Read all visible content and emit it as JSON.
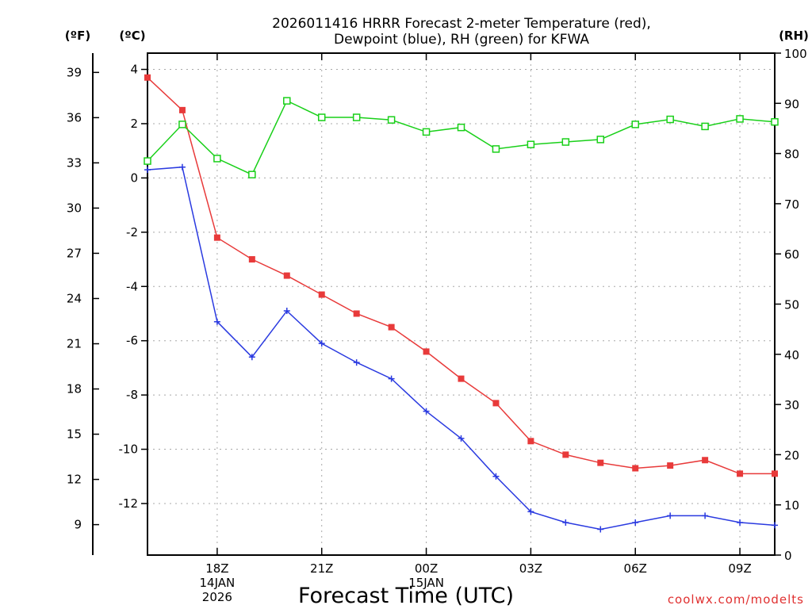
{
  "chart_data": {
    "type": "line",
    "title_lines": [
      "2026011416 HRRR Forecast 2-meter Temperature (red),",
      "Dewpoint (blue), RH (green) for KFWA"
    ],
    "xlabel": "Forecast Time (UTC)",
    "credit": "coolwx.com/modelts",
    "hours": [
      16,
      17,
      18,
      19,
      20,
      21,
      22,
      23,
      24,
      25,
      26,
      27,
      28,
      29,
      30,
      31,
      32,
      33,
      34
    ],
    "xlim": [
      16,
      34
    ],
    "x_ticks": [
      {
        "h": 18,
        "lines": [
          "18Z",
          "14JAN",
          "2026"
        ]
      },
      {
        "h": 21,
        "lines": [
          "21Z"
        ]
      },
      {
        "h": 24,
        "lines": [
          "00Z",
          "15JAN"
        ]
      },
      {
        "h": 27,
        "lines": [
          "03Z"
        ]
      },
      {
        "h": 30,
        "lines": [
          "06Z"
        ]
      },
      {
        "h": 33,
        "lines": [
          "09Z"
        ]
      }
    ],
    "axis_c": {
      "unit": "(ºC)",
      "lim": [
        -13.9,
        4.6
      ],
      "ticks": [
        4,
        2,
        0,
        -2,
        -4,
        -6,
        -8,
        -10,
        -12
      ]
    },
    "axis_f": {
      "unit": "(ºF)",
      "ticks": [
        39,
        36,
        33,
        30,
        27,
        24,
        21,
        18,
        15,
        12,
        9
      ]
    },
    "axis_rh": {
      "unit": "(RH)",
      "lim": [
        0,
        100
      ],
      "ticks": [
        100,
        90,
        80,
        70,
        60,
        50,
        40,
        30,
        20,
        10,
        0
      ]
    },
    "series": [
      {
        "name": "Temperature",
        "unit": "C",
        "color": "#e83a3a",
        "marker": "filled-square",
        "values": [
          3.7,
          2.5,
          -2.2,
          -3.0,
          -3.6,
          -4.3,
          -5.0,
          -5.5,
          -6.4,
          -7.4,
          -8.3,
          -9.7,
          -10.2,
          -10.5,
          -10.7,
          -10.6,
          -10.4,
          -10.9,
          -10.9
        ]
      },
      {
        "name": "Dewpoint",
        "unit": "C",
        "color": "#2a3ae0",
        "marker": "plus",
        "values": [
          0.3,
          0.4,
          -5.3,
          -6.6,
          -4.9,
          -6.1,
          -6.8,
          -7.4,
          -8.6,
          -9.6,
          -11.0,
          -12.3,
          -12.7,
          -12.95,
          -12.7,
          -12.45,
          -12.45,
          -12.7,
          -12.8
        ]
      },
      {
        "name": "RH",
        "unit": "%",
        "color": "#19d019",
        "marker": "open-square",
        "values": [
          78.5,
          85.8,
          79.0,
          75.8,
          90.5,
          87.2,
          87.2,
          86.7,
          84.3,
          85.2,
          80.9,
          81.8,
          82.3,
          82.8,
          85.8,
          86.8,
          85.4,
          86.9,
          86.3
        ]
      }
    ]
  }
}
